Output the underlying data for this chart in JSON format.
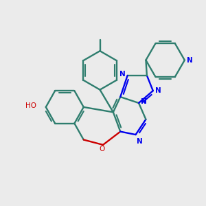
{
  "bg_color": "#ebebeb",
  "bond_color": "#2e7d6e",
  "N_color": "#0000ee",
  "O_color": "#cc0000",
  "lw": 1.7,
  "lw_double_inner": 1.5,
  "figsize": [
    3.0,
    3.0
  ],
  "dpi": 100,
  "xlim": [
    0,
    10
  ],
  "ylim": [
    0,
    10
  ]
}
